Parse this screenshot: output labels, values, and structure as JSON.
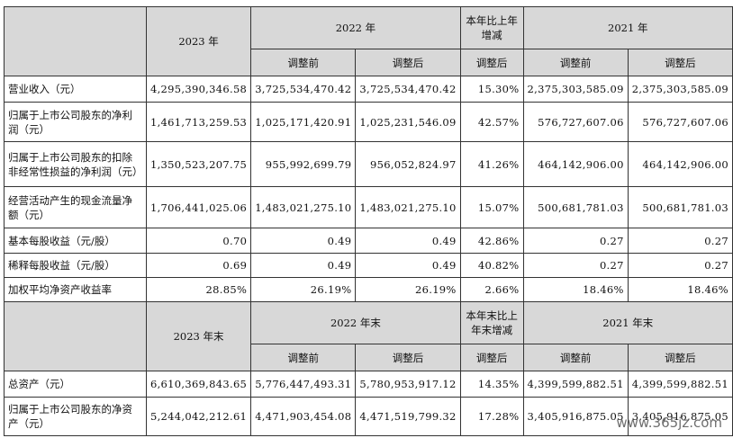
{
  "section1": {
    "header": {
      "year_2023": "2023 年",
      "year_2022": "2022 年",
      "change": "本年比上年\n增减",
      "year_2021": "2021 年",
      "before": "调整前",
      "after": "调整后",
      "after_change": "调整后"
    },
    "rows": [
      {
        "label": "营业收入（元）",
        "v2023": "4,295,390,346.58",
        "v2022_before": "3,725,534,470.42",
        "v2022_after": "3,725,534,470.42",
        "change": "15.30%",
        "v2021_before": "2,375,303,585.09",
        "v2021_after": "2,375,303,585.09"
      },
      {
        "label": "归属于上市公司股东的净利润（元）",
        "v2023": "1,461,713,259.53",
        "v2022_before": "1,025,171,420.91",
        "v2022_after": "1,025,231,546.09",
        "change": "42.57%",
        "v2021_before": "576,727,607.06",
        "v2021_after": "576,727,607.06"
      },
      {
        "label": "归属于上市公司股东的扣除非经常性损益的净利润（元）",
        "v2023": "1,350,523,207.75",
        "v2022_before": "955,992,699.79",
        "v2022_after": "956,052,824.97",
        "change": "41.26%",
        "v2021_before": "464,142,906.00",
        "v2021_after": "464,142,906.00"
      },
      {
        "label": "经营活动产生的现金流量净额（元）",
        "v2023": "1,706,441,025.06",
        "v2022_before": "1,483,021,275.10",
        "v2022_after": "1,483,021,275.10",
        "change": "15.07%",
        "v2021_before": "500,681,781.03",
        "v2021_after": "500,681,781.03"
      },
      {
        "label": "基本每股收益（元/股）",
        "v2023": "0.70",
        "v2022_before": "0.49",
        "v2022_after": "0.49",
        "change": "42.86%",
        "v2021_before": "0.27",
        "v2021_after": "0.27"
      },
      {
        "label": "稀释每股收益（元/股）",
        "v2023": "0.69",
        "v2022_before": "0.49",
        "v2022_after": "0.49",
        "change": "40.82%",
        "v2021_before": "0.27",
        "v2021_after": "0.27"
      },
      {
        "label": "加权平均净资产收益率",
        "v2023": "28.85%",
        "v2022_before": "26.19%",
        "v2022_after": "26.19%",
        "change": "2.66%",
        "v2021_before": "18.46%",
        "v2021_after": "18.46%"
      }
    ]
  },
  "section2": {
    "header": {
      "year_2023": "2023 年末",
      "year_2022": "2022 年末",
      "change": "本年末比上\n年末增减",
      "year_2021": "2021 年末",
      "before": "调整前",
      "after": "调整后",
      "after_change": "调整后"
    },
    "rows": [
      {
        "label": "总资产（元）",
        "v2023": "6,610,369,843.65",
        "v2022_before": "5,776,447,493.31",
        "v2022_after": "5,780,953,917.12",
        "change": "14.35%",
        "v2021_before": "4,399,599,882.51",
        "v2021_after": "4,399,599,882.51"
      },
      {
        "label": "归属于上市公司股东的净资产（元）",
        "v2023": "5,244,042,212.61",
        "v2022_before": "4,471,903,454.08",
        "v2022_after": "4,471,519,799.32",
        "change": "17.28%",
        "v2021_before": "3,405,916,875.05",
        "v2021_after": "3,405,916,875.05"
      }
    ]
  },
  "watermark": "www.365jz.com"
}
